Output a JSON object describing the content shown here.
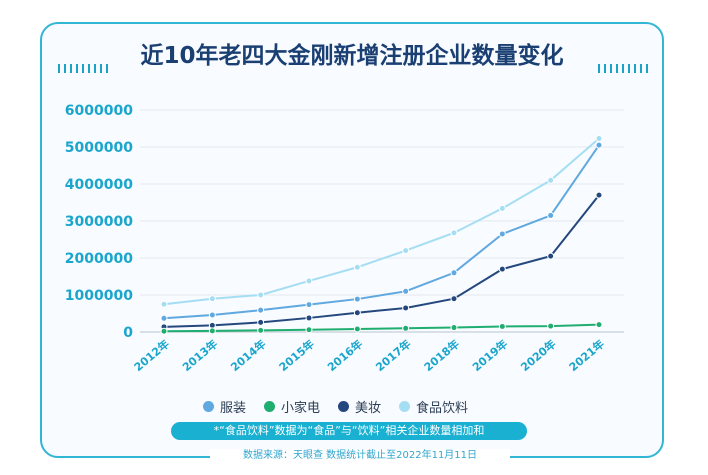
{
  "title": "近10年老四大金刚新增注册企业数量变化",
  "note": "*“食品饮料”数据为“食品”与“饮料”相关企业数量相加和",
  "source": "数据来源：天眼查 数据统计截止至2022年11月11日",
  "chart_data": {
    "type": "line",
    "title": "近10年老四大金刚新增注册企业数量变化",
    "categories": [
      "2012年",
      "2013年",
      "2014年",
      "2015年",
      "2016年",
      "2017年",
      "2018年",
      "2019年",
      "2020年",
      "2021年"
    ],
    "ylim": [
      0,
      6000000
    ],
    "yticks": [
      "0",
      "1000000",
      "2000000",
      "3000000",
      "4000000",
      "5000000",
      "6000000"
    ],
    "grid": true,
    "legend_position": "bottom",
    "series": [
      {
        "name": "服装",
        "color": "#5fa8e0",
        "values": [
          370000,
          460000,
          590000,
          740000,
          890000,
          1100000,
          1600000,
          2650000,
          3150000,
          5050000
        ]
      },
      {
        "name": "小家电",
        "color": "#1fae6f",
        "values": [
          20000,
          30000,
          45000,
          60000,
          80000,
          100000,
          120000,
          150000,
          160000,
          200000
        ]
      },
      {
        "name": "美妆",
        "color": "#24487e",
        "values": [
          140000,
          180000,
          260000,
          380000,
          520000,
          650000,
          900000,
          1700000,
          2050000,
          3700000
        ]
      },
      {
        "name": "食品饮料",
        "color": "#a5def3",
        "values": [
          750000,
          900000,
          1000000,
          1380000,
          1750000,
          2200000,
          2680000,
          3340000,
          4100000,
          5230000
        ]
      }
    ]
  }
}
